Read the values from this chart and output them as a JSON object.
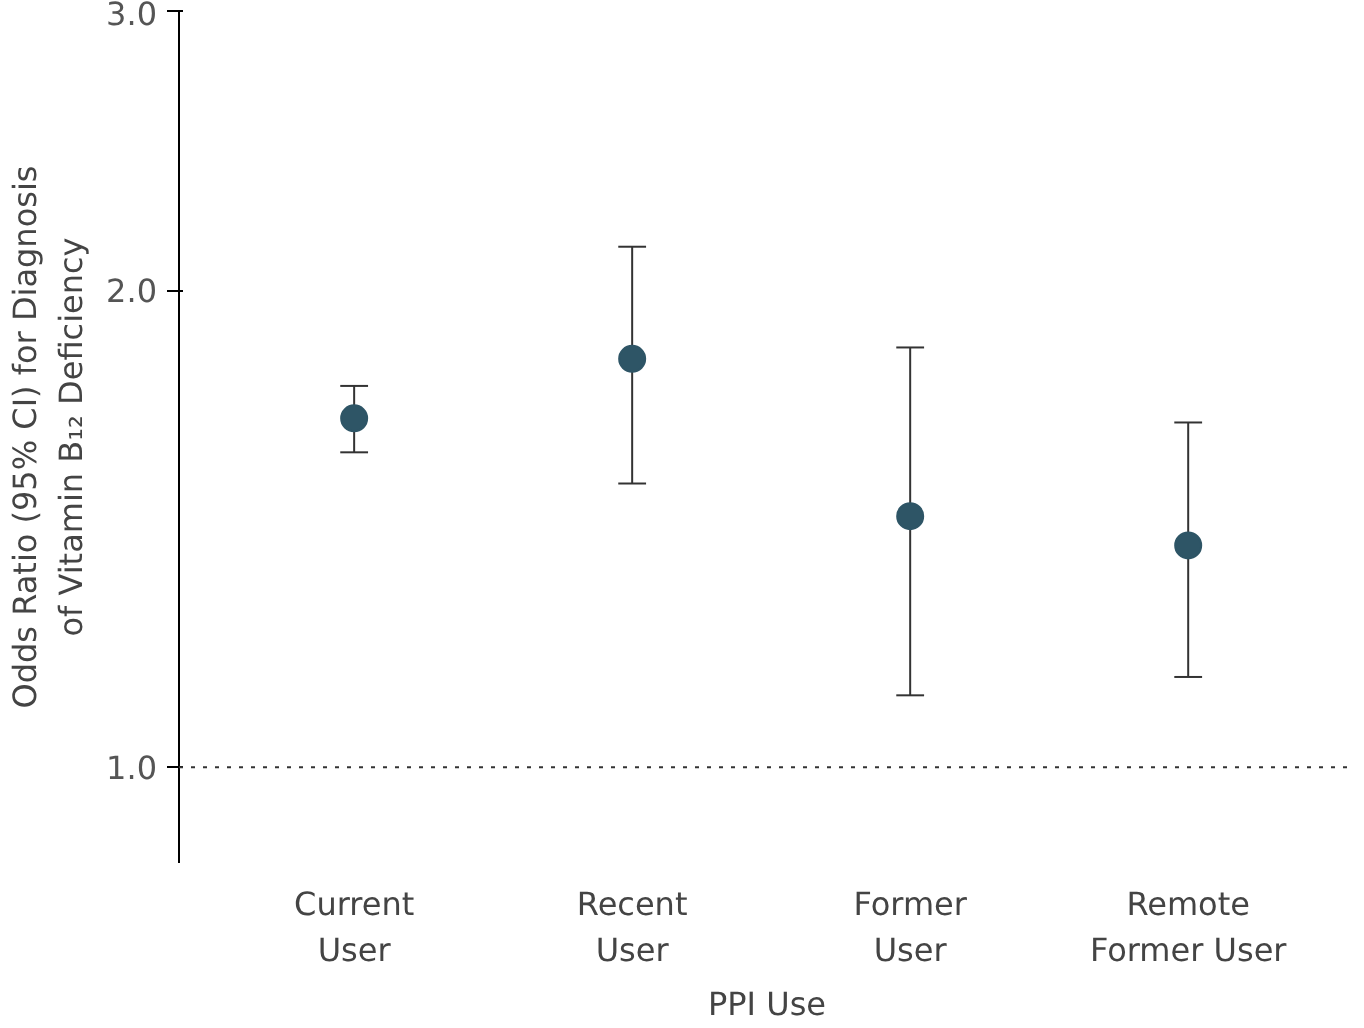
{
  "chart_data": {
    "type": "scatter",
    "xlabel": "PPI Use",
    "ylabel": "Odds Ratio (95% CI) for Diagnosis\nof Vitamin B₁₂ Deficiency",
    "categories": [
      "Current\nUser",
      "Recent\nUser",
      "Former\nUser",
      "Remote\nFormer User"
    ],
    "values": [
      1.66,
      1.81,
      1.44,
      1.38
    ],
    "errors": [
      [
        1.58,
        1.74
      ],
      [
        1.51,
        2.13
      ],
      [
        1.11,
        1.84
      ],
      [
        1.14,
        1.65
      ]
    ],
    "color": "#2e5566",
    "marker": "circle",
    "log": "y",
    "ylim": [
      0.87,
      3.0
    ],
    "yticks": [
      {
        "value": 1,
        "label": "1.0"
      },
      {
        "value": 2,
        "label": "2.0"
      },
      {
        "value": 3,
        "label": "3.0"
      }
    ],
    "ref_lines": [
      {
        "axis": "y",
        "value": 1,
        "label": null,
        "line_style": "dotted",
        "color": "#333333"
      }
    ],
    "grid": false
  }
}
